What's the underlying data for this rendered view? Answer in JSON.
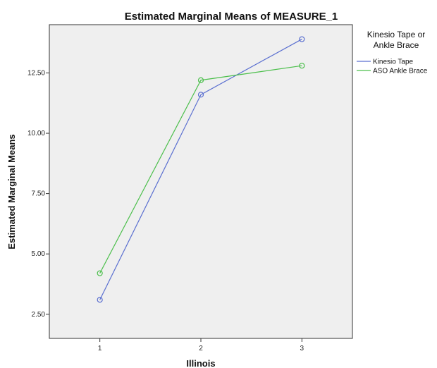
{
  "chart_data": {
    "type": "line",
    "title": "Estimated Marginal Means of MEASURE_1",
    "xlabel": "Illinois",
    "ylabel": "Estimated Marginal Means",
    "categories": [
      "1",
      "2",
      "3"
    ],
    "xlim": [
      0.5,
      3.5
    ],
    "ylim": [
      1.5,
      14.5
    ],
    "yticks": [
      "2.50",
      "5.00",
      "7.50",
      "10.00",
      "12.50"
    ],
    "grid": false,
    "legend_title": "Kinesio Tape or Ankle Brace",
    "legend_title_lines": [
      "Kinesio Tape or",
      "Ankle Brace"
    ],
    "legend_position": "right",
    "series": [
      {
        "name": "Kinesio Tape",
        "values": [
          3.1,
          11.6,
          13.9
        ],
        "color": "#5a6fd0"
      },
      {
        "name": "ASO Ankle Brace",
        "values": [
          4.2,
          12.2,
          12.8
        ],
        "color": "#4cbf4c"
      }
    ],
    "plot_background": "#efefef"
  }
}
